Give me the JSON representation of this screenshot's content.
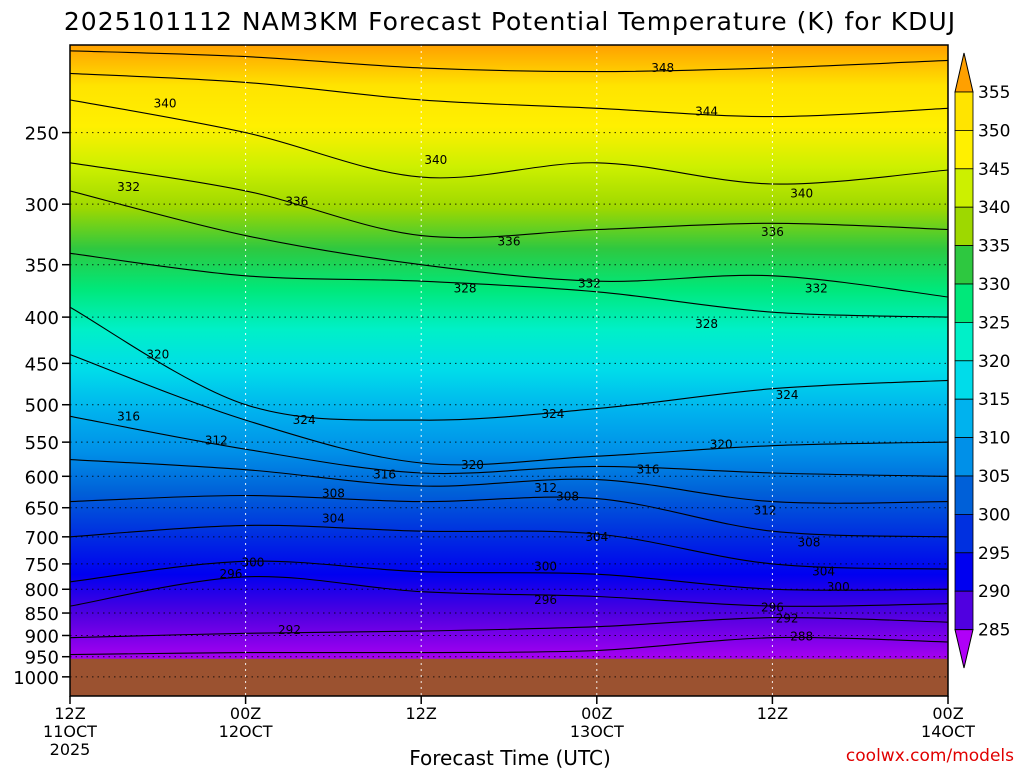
{
  "chart_data": {
    "type": "heatmap",
    "title": "2025101112 NAM3KM Forecast Potential Temperature (K) for KDUJ",
    "xlabel": "Forecast Time (UTC)",
    "ylabel": "",
    "credit": "coolwx.com/models",
    "y_scale": "pressure (log-p, hPa)",
    "ylim": [
      1050,
      200
    ],
    "y_ticks": [
      250,
      300,
      350,
      400,
      450,
      500,
      550,
      600,
      650,
      700,
      750,
      800,
      850,
      900,
      950,
      1000
    ],
    "x_range_hours": [
      0,
      60
    ],
    "x_ticks": [
      {
        "hour": 0,
        "l1": "12Z",
        "l2": "11OCT",
        "l3": "2025"
      },
      {
        "hour": 12,
        "l1": "00Z",
        "l2": "12OCT",
        "l3": ""
      },
      {
        "hour": 24,
        "l1": "12Z",
        "l2": "",
        "l3": ""
      },
      {
        "hour": 36,
        "l1": "00Z",
        "l2": "13OCT",
        "l3": ""
      },
      {
        "hour": 48,
        "l1": "12Z",
        "l2": "",
        "l3": ""
      },
      {
        "hour": 60,
        "l1": "00Z",
        "l2": "14OCT",
        "l3": ""
      }
    ],
    "ground_level_hpa": 955,
    "ground_color": "#9b5230",
    "colorbar": {
      "units": "K",
      "levels": [
        355,
        350,
        345,
        340,
        335,
        330,
        325,
        320,
        315,
        310,
        305,
        300,
        295,
        290,
        285
      ],
      "colors": [
        "#ffe400",
        "#fff000",
        "#ccf000",
        "#9ed800",
        "#2ec840",
        "#00e87a",
        "#00f0c8",
        "#00dcea",
        "#00b2ee",
        "#0090e8",
        "#0060d8",
        "#0030e0",
        "#0000f0",
        "#5000e0",
        "#a000f0"
      ],
      "top_color": "#ffa000",
      "bottom_color": "#b000f8"
    },
    "isotherm_series": [
      {
        "name": "288",
        "values": [
          {
            "h": 0,
            "p": 945
          },
          {
            "h": 12,
            "p": 940
          },
          {
            "h": 24,
            "p": 940
          },
          {
            "h": 36,
            "p": 935
          },
          {
            "h": 48,
            "p": 905
          },
          {
            "h": 60,
            "p": 915
          }
        ]
      },
      {
        "name": "292",
        "values": [
          {
            "h": 0,
            "p": 905
          },
          {
            "h": 12,
            "p": 895
          },
          {
            "h": 24,
            "p": 890
          },
          {
            "h": 36,
            "p": 880
          },
          {
            "h": 48,
            "p": 860
          },
          {
            "h": 60,
            "p": 870
          }
        ]
      },
      {
        "name": "296",
        "values": [
          {
            "h": 0,
            "p": 835
          },
          {
            "h": 12,
            "p": 775
          },
          {
            "h": 24,
            "p": 805
          },
          {
            "h": 36,
            "p": 815
          },
          {
            "h": 48,
            "p": 835
          },
          {
            "h": 60,
            "p": 830
          }
        ]
      },
      {
        "name": "300",
        "values": [
          {
            "h": 0,
            "p": 785
          },
          {
            "h": 12,
            "p": 745
          },
          {
            "h": 24,
            "p": 765
          },
          {
            "h": 36,
            "p": 770
          },
          {
            "h": 48,
            "p": 800
          },
          {
            "h": 60,
            "p": 800
          }
        ]
      },
      {
        "name": "304",
        "values": [
          {
            "h": 0,
            "p": 700
          },
          {
            "h": 12,
            "p": 680
          },
          {
            "h": 24,
            "p": 690
          },
          {
            "h": 36,
            "p": 695
          },
          {
            "h": 48,
            "p": 750
          },
          {
            "h": 60,
            "p": 760
          }
        ]
      },
      {
        "name": "308",
        "values": [
          {
            "h": 0,
            "p": 640
          },
          {
            "h": 12,
            "p": 630
          },
          {
            "h": 24,
            "p": 640
          },
          {
            "h": 36,
            "p": 635
          },
          {
            "h": 48,
            "p": 690
          },
          {
            "h": 60,
            "p": 700
          }
        ]
      },
      {
        "name": "312",
        "values": [
          {
            "h": 0,
            "p": 575
          },
          {
            "h": 12,
            "p": 590
          },
          {
            "h": 24,
            "p": 615
          },
          {
            "h": 36,
            "p": 605
          },
          {
            "h": 48,
            "p": 640
          },
          {
            "h": 60,
            "p": 640
          }
        ]
      },
      {
        "name": "316",
        "values": [
          {
            "h": 0,
            "p": 515
          },
          {
            "h": 12,
            "p": 560
          },
          {
            "h": 24,
            "p": 595
          },
          {
            "h": 36,
            "p": 585
          },
          {
            "h": 48,
            "p": 595
          },
          {
            "h": 60,
            "p": 600
          }
        ]
      },
      {
        "name": "320",
        "values": [
          {
            "h": 0,
            "p": 440
          },
          {
            "h": 12,
            "p": 520
          },
          {
            "h": 24,
            "p": 580
          },
          {
            "h": 36,
            "p": 570
          },
          {
            "h": 48,
            "p": 555
          },
          {
            "h": 60,
            "p": 550
          }
        ]
      },
      {
        "name": "324",
        "values": [
          {
            "h": 0,
            "p": 390
          },
          {
            "h": 12,
            "p": 500
          },
          {
            "h": 24,
            "p": 520
          },
          {
            "h": 36,
            "p": 505
          },
          {
            "h": 48,
            "p": 480
          },
          {
            "h": 60,
            "p": 470
          }
        ]
      },
      {
        "name": "328",
        "values": [
          {
            "h": 0,
            "p": 340
          },
          {
            "h": 12,
            "p": 360
          },
          {
            "h": 24,
            "p": 365
          },
          {
            "h": 36,
            "p": 375
          },
          {
            "h": 48,
            "p": 395
          },
          {
            "h": 60,
            "p": 400
          }
        ]
      },
      {
        "name": "332",
        "values": [
          {
            "h": 0,
            "p": 290
          },
          {
            "h": 12,
            "p": 325
          },
          {
            "h": 24,
            "p": 350
          },
          {
            "h": 36,
            "p": 365
          },
          {
            "h": 48,
            "p": 360
          },
          {
            "h": 60,
            "p": 380
          }
        ]
      },
      {
        "name": "336",
        "values": [
          {
            "h": 0,
            "p": 270
          },
          {
            "h": 12,
            "p": 290
          },
          {
            "h": 24,
            "p": 325
          },
          {
            "h": 36,
            "p": 320
          },
          {
            "h": 48,
            "p": 315
          },
          {
            "h": 60,
            "p": 320
          }
        ]
      },
      {
        "name": "340",
        "values": [
          {
            "h": 0,
            "p": 230
          },
          {
            "h": 12,
            "p": 250
          },
          {
            "h": 24,
            "p": 280
          },
          {
            "h": 36,
            "p": 270
          },
          {
            "h": 48,
            "p": 285
          },
          {
            "h": 60,
            "p": 275
          }
        ]
      },
      {
        "name": "344",
        "values": [
          {
            "h": 0,
            "p": 215
          },
          {
            "h": 12,
            "p": 220
          },
          {
            "h": 24,
            "p": 230
          },
          {
            "h": 36,
            "p": 235
          },
          {
            "h": 48,
            "p": 240
          },
          {
            "h": 60,
            "p": 235
          }
        ]
      },
      {
        "name": "348",
        "values": [
          {
            "h": 0,
            "p": 203
          },
          {
            "h": 12,
            "p": 206
          },
          {
            "h": 24,
            "p": 212
          },
          {
            "h": 36,
            "p": 214
          },
          {
            "h": 48,
            "p": 212
          },
          {
            "h": 60,
            "p": 208
          }
        ]
      }
    ],
    "contour_labels": [
      {
        "text": "348",
        "h": 40.5,
        "p": 212
      },
      {
        "text": "340",
        "h": 6.5,
        "p": 232
      },
      {
        "text": "344",
        "h": 43.5,
        "p": 237
      },
      {
        "text": "340",
        "h": 25,
        "p": 268
      },
      {
        "text": "332",
        "h": 4,
        "p": 287
      },
      {
        "text": "336",
        "h": 15.5,
        "p": 298
      },
      {
        "text": "340",
        "h": 50,
        "p": 292
      },
      {
        "text": "336",
        "h": 30,
        "p": 330
      },
      {
        "text": "336",
        "h": 48,
        "p": 322
      },
      {
        "text": "328",
        "h": 27,
        "p": 372
      },
      {
        "text": "332",
        "h": 35.5,
        "p": 367
      },
      {
        "text": "332",
        "h": 51,
        "p": 372
      },
      {
        "text": "328",
        "h": 43.5,
        "p": 407
      },
      {
        "text": "320",
        "h": 6,
        "p": 440
      },
      {
        "text": "316",
        "h": 4,
        "p": 515
      },
      {
        "text": "324",
        "h": 16,
        "p": 520
      },
      {
        "text": "324",
        "h": 33,
        "p": 512
      },
      {
        "text": "324",
        "h": 49,
        "p": 488
      },
      {
        "text": "312",
        "h": 10,
        "p": 548
      },
      {
        "text": "320",
        "h": 27.5,
        "p": 583
      },
      {
        "text": "320",
        "h": 44.5,
        "p": 553
      },
      {
        "text": "316",
        "h": 21.5,
        "p": 597
      },
      {
        "text": "316",
        "h": 39.5,
        "p": 590
      },
      {
        "text": "312",
        "h": 32.5,
        "p": 618
      },
      {
        "text": "308",
        "h": 18,
        "p": 627
      },
      {
        "text": "308",
        "h": 34,
        "p": 632
      },
      {
        "text": "312",
        "h": 47.5,
        "p": 655
      },
      {
        "text": "304",
        "h": 18,
        "p": 668
      },
      {
        "text": "304",
        "h": 36,
        "p": 700
      },
      {
        "text": "308",
        "h": 50.5,
        "p": 710
      },
      {
        "text": "300",
        "h": 12.5,
        "p": 747
      },
      {
        "text": "300",
        "h": 32.5,
        "p": 755
      },
      {
        "text": "296",
        "h": 11,
        "p": 770
      },
      {
        "text": "304",
        "h": 51.5,
        "p": 765
      },
      {
        "text": "300",
        "h": 52.5,
        "p": 795
      },
      {
        "text": "296",
        "h": 32.5,
        "p": 822
      },
      {
        "text": "296",
        "h": 48,
        "p": 838
      },
      {
        "text": "292",
        "h": 49,
        "p": 862
      },
      {
        "text": "292",
        "h": 15,
        "p": 888
      },
      {
        "text": "288",
        "h": 50,
        "p": 902
      }
    ]
  }
}
